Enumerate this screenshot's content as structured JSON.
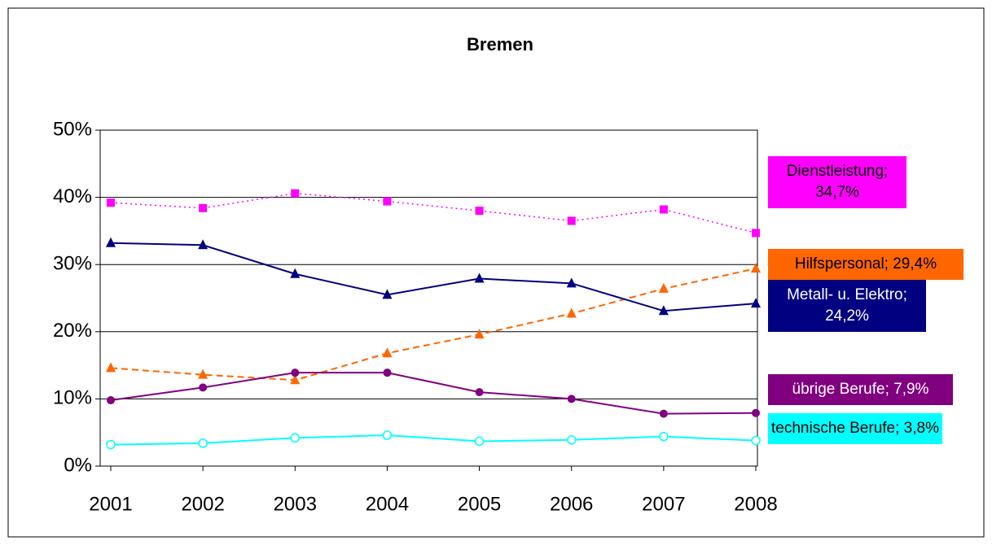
{
  "chart_data": {
    "type": "line",
    "title": "Bremen",
    "categories": [
      "2001",
      "2002",
      "2003",
      "2004",
      "2005",
      "2006",
      "2007",
      "2008"
    ],
    "ylim": [
      0,
      50
    ],
    "yticks": [
      {
        "value": 0,
        "label": "0%"
      },
      {
        "value": 10,
        "label": "10%"
      },
      {
        "value": 20,
        "label": "20%"
      },
      {
        "value": 30,
        "label": "30%"
      },
      {
        "value": 40,
        "label": "40%"
      },
      {
        "value": 50,
        "label": "50%"
      }
    ],
    "grid": true,
    "series": [
      {
        "name": "Dienstleistung",
        "color": "#ff00ff",
        "line_style": "dotted",
        "marker": "square",
        "values": [
          39.2,
          38.4,
          40.6,
          39.4,
          38.0,
          36.5,
          38.2,
          34.7
        ],
        "value_labels": [
          null,
          null,
          null,
          null,
          null,
          null,
          null,
          "Dienstleistung; 34,7%"
        ]
      },
      {
        "name": "Hilfspersonal",
        "color": "#ff6600",
        "line_style": "dashed",
        "marker": "triangle",
        "values": [
          14.6,
          13.6,
          12.8,
          16.8,
          19.6,
          22.7,
          26.4,
          29.4
        ],
        "value_labels": [
          null,
          null,
          null,
          null,
          null,
          null,
          null,
          "Hilfspersonal; 29,4%"
        ]
      },
      {
        "name": "Metall- u. Elektro",
        "color": "#000080",
        "line_style": "solid",
        "marker": "triangle",
        "values": [
          33.2,
          32.9,
          28.6,
          25.5,
          27.9,
          27.2,
          23.1,
          24.2
        ],
        "value_labels": [
          null,
          null,
          null,
          null,
          null,
          null,
          null,
          "Metall- u. Elektro; 24,2%"
        ]
      },
      {
        "name": "übrige Berufe",
        "color": "#800080",
        "line_style": "solid",
        "marker": "circle",
        "values": [
          9.8,
          11.7,
          13.9,
          13.9,
          11.0,
          10.0,
          7.8,
          7.9
        ],
        "value_labels": [
          null,
          null,
          null,
          null,
          null,
          null,
          null,
          "übrige Berufe; 7,9%"
        ]
      },
      {
        "name": "technische Berufe",
        "color": "#00ffff",
        "line_style": "solid",
        "marker": "hollow-circle",
        "values": [
          3.2,
          3.4,
          4.2,
          4.6,
          3.7,
          3.9,
          4.4,
          3.8
        ],
        "value_labels": [
          null,
          null,
          null,
          null,
          null,
          null,
          null,
          "technische Berufe; 3,8%"
        ]
      }
    ]
  }
}
